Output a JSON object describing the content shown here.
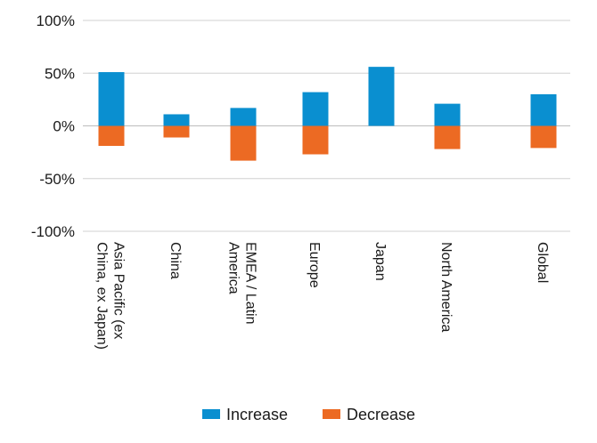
{
  "chart_data": {
    "type": "bar",
    "categories": [
      [
        "Asia Pacific (ex",
        "China, ex Japan)"
      ],
      [
        "China"
      ],
      [
        "EMEA / Latin",
        "America"
      ],
      [
        "Europe"
      ],
      [
        "Japan"
      ],
      [
        "North America"
      ],
      [
        "Global"
      ]
    ],
    "series": [
      {
        "name": "Increase",
        "color": "#0a8fd0",
        "values": [
          51,
          11,
          17,
          32,
          56,
          21,
          30
        ]
      },
      {
        "name": "Decrease",
        "color": "#ec6a23",
        "values": [
          -19,
          -11,
          -33,
          -27,
          0,
          -22,
          -21
        ]
      }
    ],
    "ylim": [
      -100,
      100
    ],
    "yticks": [
      100,
      50,
      0,
      -50,
      -100
    ],
    "ytick_labels": [
      "100%",
      "50%",
      "0%",
      "-50%",
      "-100%"
    ],
    "grid": true,
    "legend_position": "bottom-center"
  }
}
